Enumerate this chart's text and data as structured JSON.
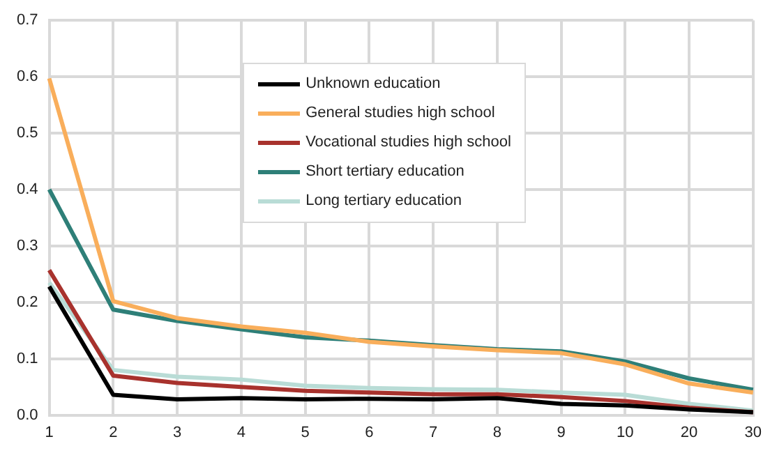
{
  "chart_data": {
    "type": "line",
    "categories": [
      "1",
      "2",
      "3",
      "4",
      "5",
      "6",
      "7",
      "8",
      "9",
      "10",
      "20",
      "30"
    ],
    "ylim": [
      0,
      0.7
    ],
    "yticks": [
      {
        "value": 0,
        "label": "0.0"
      },
      0.1,
      0.2,
      0.3,
      0.4,
      0.5,
      0.6,
      0.7
    ],
    "grid": true,
    "legend": "top",
    "marker": "none",
    "line_style": "solid",
    "series": [
      {
        "name": "Unknown education",
        "color": "#000000",
        "values": [
          0.228,
          0.036,
          0.028,
          0.03,
          0.028,
          0.029,
          0.028,
          0.03,
          0.02,
          0.017,
          0.01,
          0.005
        ]
      },
      {
        "name": "General studies high school",
        "color": "#f9ae5b",
        "values": [
          0.597,
          0.202,
          0.172,
          0.157,
          0.146,
          0.13,
          0.122,
          0.115,
          0.11,
          0.09,
          0.056,
          0.04
        ]
      },
      {
        "name": "Vocational studies high school",
        "color": "#a8322d",
        "values": [
          0.257,
          0.07,
          0.057,
          0.05,
          0.043,
          0.04,
          0.037,
          0.037,
          0.032,
          0.025,
          0.013,
          0.005
        ]
      },
      {
        "name": "Short tertiary education",
        "color": "#2e7f78",
        "values": [
          0.4,
          0.187,
          0.167,
          0.152,
          0.138,
          0.132,
          0.124,
          0.117,
          0.113,
          0.095,
          0.065,
          0.045
        ]
      },
      {
        "name": "Long tertiary education",
        "color": "#b9dcd6",
        "values": [
          0.235,
          0.08,
          0.068,
          0.063,
          0.052,
          0.048,
          0.046,
          0.045,
          0.04,
          0.036,
          0.02,
          0.008
        ]
      }
    ]
  }
}
